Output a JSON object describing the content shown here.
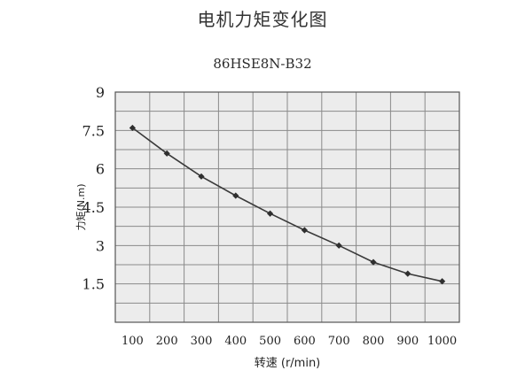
{
  "chart_data": {
    "type": "line",
    "title": "电机力矩变化图",
    "subtitle": "86HSE8N-B32",
    "xlabel": "转速 (r/min)",
    "ylabel": "力矩(N.m)",
    "x": [
      100,
      200,
      300,
      400,
      500,
      600,
      700,
      800,
      900,
      1000
    ],
    "x_tick_labels": [
      "100",
      "200",
      "300",
      "400",
      "500",
      "600",
      "700",
      "800",
      "900",
      "1000"
    ],
    "y_ticks": [
      0,
      1.5,
      3,
      4.5,
      6,
      7.5,
      9
    ],
    "y_tick_labels": [
      "",
      "1.5",
      "3",
      "4.5",
      "6",
      "7.5",
      "9"
    ],
    "ylim": [
      0,
      9
    ],
    "grid": true,
    "series": [
      {
        "values": [
          7.6,
          6.6,
          5.7,
          4.95,
          4.25,
          3.6,
          3.0,
          2.35,
          1.9,
          1.6
        ]
      }
    ],
    "colors": {
      "line": "#3a3a3a",
      "grid": "#8a8a8a",
      "plot_bg": "#ececec"
    }
  }
}
